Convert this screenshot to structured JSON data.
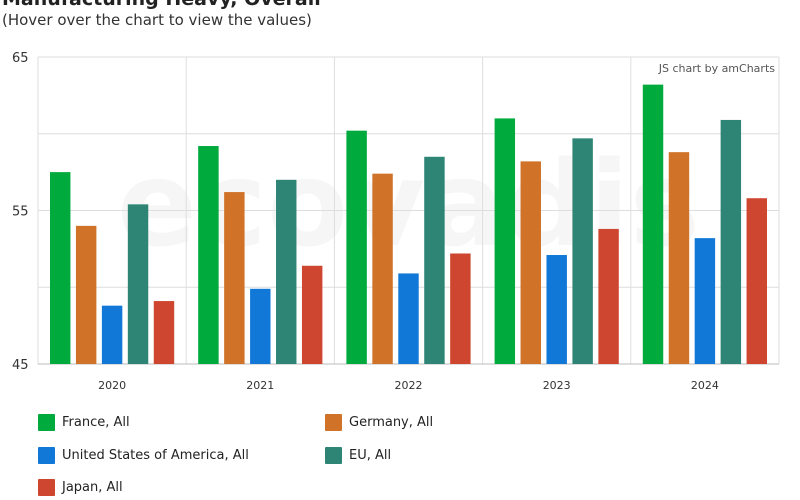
{
  "title": "Manufacturing Heavy, Overall",
  "subtitle": "(Hover over the chart to view the values)",
  "credit": "JS chart by amCharts",
  "watermark": "ecovadis",
  "colors": {
    "France, All": "#00aa3c",
    "Germany, All": "#d07228",
    "United States of America, All": "#1178d8",
    "EU, All": "#2e8575",
    "Japan, All": "#cf4630"
  },
  "chart_data": {
    "type": "bar",
    "categories": [
      "2020",
      "2021",
      "2022",
      "2023",
      "2024"
    ],
    "series": [
      {
        "name": "France, All",
        "values": [
          57.5,
          59.2,
          60.2,
          61.0,
          63.2
        ]
      },
      {
        "name": "Germany, All",
        "values": [
          54.0,
          56.2,
          57.4,
          58.2,
          58.8
        ]
      },
      {
        "name": "United States of America, All",
        "values": [
          48.8,
          49.9,
          50.9,
          52.1,
          53.2
        ]
      },
      {
        "name": "EU, All",
        "values": [
          55.4,
          57.0,
          58.5,
          59.7,
          60.9
        ]
      },
      {
        "name": "Japan, All",
        "values": [
          49.1,
          51.4,
          52.2,
          53.8,
          55.8
        ]
      }
    ],
    "yticks": [
      "45",
      "55",
      "65"
    ],
    "ylim": [
      45,
      65
    ],
    "grid": true,
    "legend": "bottom",
    "xlabel": "",
    "ylabel": ""
  }
}
